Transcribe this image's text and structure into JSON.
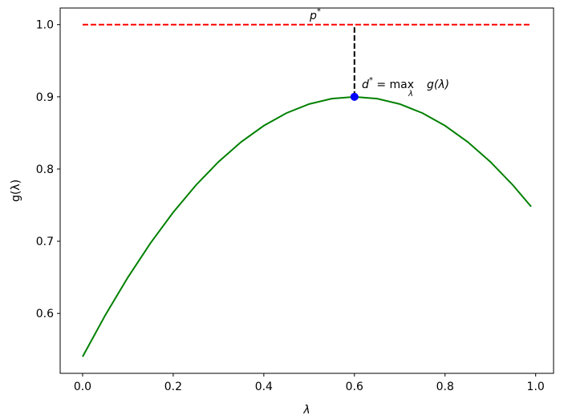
{
  "chart_data": {
    "type": "line",
    "xlabel": "λ",
    "ylabel": "g(λ)",
    "xlim": [
      -0.0495,
      1.0395
    ],
    "ylim": [
      0.517,
      1.023
    ],
    "xticks": [
      {
        "value": 0,
        "label": "0.0"
      },
      0.2,
      0.4,
      0.6,
      0.8,
      {
        "value": 1,
        "label": "1.0"
      }
    ],
    "yticks": [
      0.6,
      0.7,
      0.8,
      0.9,
      {
        "value": 1,
        "label": "1.0"
      }
    ],
    "series": [
      {
        "color": "#008000",
        "style": "solid",
        "x": [
          0,
          0.05,
          0.1,
          0.15,
          0.2,
          0.25,
          0.3,
          0.35,
          0.4,
          0.45,
          0.5,
          0.55,
          0.6,
          0.65,
          0.7,
          0.75,
          0.8,
          0.85,
          0.9,
          0.95,
          0.99
        ],
        "values": [
          0.54,
          0.5975,
          0.65,
          0.6975,
          0.74,
          0.7775,
          0.81,
          0.8375,
          0.86,
          0.8775,
          0.89,
          0.8975,
          0.9,
          0.8975,
          0.89,
          0.8775,
          0.86,
          0.8375,
          0.81,
          0.7775,
          0.7479
        ]
      },
      {
        "color": "#ff0000",
        "style": "dashed",
        "x": [
          0,
          0.99
        ],
        "values": [
          1,
          1
        ]
      },
      {
        "color": "#000000",
        "style": "dashed",
        "x": [
          0.6,
          0.6
        ],
        "values": [
          0.9,
          1
        ]
      },
      {
        "color": "#0000ff",
        "style": "point",
        "x": [
          0.6
        ],
        "values": [
          0.9
        ]
      }
    ],
    "annotations": [
      {
        "parts": [
          "p",
          "*"
        ]
      },
      {
        "parts": [
          "d",
          "*",
          " = max",
          "λ",
          "g(λ)"
        ]
      }
    ]
  }
}
